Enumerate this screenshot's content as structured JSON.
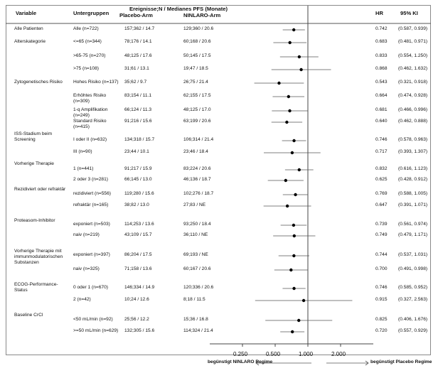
{
  "headers": {
    "variable": "Variable",
    "subgroup": "Untergruppen",
    "events_title": "Ereignisse;N / Medianes PFS (Monate)",
    "placebo": "Placebo-Arm",
    "ninlaro": "NINLARO-Arm",
    "hr": "HR",
    "ci": "95% KI"
  },
  "chart_data": {
    "type": "forest",
    "x_scale": "log",
    "xlim": [
      0.125,
      4.0
    ],
    "reference_line": 1.0,
    "x_ticks": [
      "0.250",
      "0.500",
      "1.000",
      "2.000"
    ],
    "x_tick_values": [
      0.25,
      0.5,
      1.0,
      2.0
    ],
    "left_label": "begünstigt NINLARO Regime",
    "right_label": "begünstigt Placebo Regime",
    "groups": [
      {
        "variable": "Alle Patienten",
        "rows": [
          {
            "subgroup": "Alle (n=722)",
            "placebo": "157;362 / 14.7",
            "ninlaro": "129;360 / 20.6",
            "hr": 0.742,
            "lo": 0.587,
            "hi": 0.939,
            "hr_text": "0.742",
            "ci_text": "(0.587, 0.939)"
          }
        ]
      },
      {
        "variable": "Alterskategorie",
        "rows": [
          {
            "subgroup": "<=65 (n=344)",
            "placebo": "78;176 / 14.1",
            "ninlaro": "60;168 / 20.6",
            "hr": 0.683,
            "lo": 0.481,
            "hi": 0.971,
            "hr_text": "0.683",
            "ci_text": "(0.481, 0.971)"
          },
          {
            "subgroup": ">65-75 (n=270)",
            "placebo": "48;125 / 17.6",
            "ninlaro": "50;145 / 17.5",
            "hr": 0.833,
            "lo": 0.554,
            "hi": 1.25,
            "hr_text": "0.833",
            "ci_text": "(0.554, 1.250)"
          },
          {
            "subgroup": ">75 (n=108)",
            "placebo": "31;61 / 13.1",
            "ninlaro": "19;47 / 18.5",
            "hr": 0.868,
            "lo": 0.462,
            "hi": 1.632,
            "hr_text": "0.868",
            "ci_text": "(0.462, 1.632)"
          }
        ]
      },
      {
        "variable": "Zytogenetisches Risiko",
        "rows": [
          {
            "subgroup": "Hohes Risiko (n=137)",
            "placebo": "35;62 / 9.7",
            "ninlaro": "26;75 / 21.4",
            "hr": 0.543,
            "lo": 0.321,
            "hi": 0.918,
            "hr_text": "0.543",
            "ci_text": "(0.321, 0.918)"
          },
          {
            "subgroup": "Erhöhtes Risiko (n=309)",
            "placebo": "83;154 / 11.1",
            "ninlaro": "62;155 / 17.5",
            "hr": 0.664,
            "lo": 0.474,
            "hi": 0.928,
            "hr_text": "0.664",
            "ci_text": "(0.474, 0.928)"
          },
          {
            "subgroup": "1-q Amplifikation (n=249)",
            "placebo": "66;124 / 11.3",
            "ninlaro": "48;125 / 17.0",
            "hr": 0.681,
            "lo": 0.466,
            "hi": 0.996,
            "hr_text": "0.681",
            "ci_text": "(0.466, 0.996)"
          },
          {
            "subgroup": "Standard Risiko (n=415)",
            "placebo": "91;216 / 15.6",
            "ninlaro": "63;199 / 20.6",
            "hr": 0.64,
            "lo": 0.462,
            "hi": 0.888,
            "hr_text": "0.640",
            "ci_text": "(0.462, 0.888)"
          }
        ]
      },
      {
        "variable": "ISS-Stadium beim Screening",
        "rows": [
          {
            "subgroup": "I oder II (n=632)",
            "placebo": "134;318 / 15.7",
            "ninlaro": "106;314 / 21.4",
            "hr": 0.746,
            "lo": 0.578,
            "hi": 0.963,
            "hr_text": "0.746",
            "ci_text": "(0.578, 0.963)"
          },
          {
            "subgroup": "III (n=90)",
            "placebo": "23;44 / 10.1",
            "ninlaro": "23;46 / 18.4",
            "hr": 0.717,
            "lo": 0.393,
            "hi": 1.307,
            "hr_text": "0.717",
            "ci_text": "(0.393, 1.307)"
          }
        ]
      },
      {
        "variable": "Vorherige Therapie",
        "rows": [
          {
            "subgroup": "1 (n=441)",
            "placebo": "91;217 / 15.9",
            "ninlaro": "83;224 / 20.6",
            "hr": 0.832,
            "lo": 0.616,
            "hi": 1.123,
            "hr_text": "0.832",
            "ci_text": "(0.616, 1.123)"
          },
          {
            "subgroup": "2 oder 3 (n=281)",
            "placebo": "66;145 / 13.0",
            "ninlaro": "46;136 / 18.7",
            "hr": 0.625,
            "lo": 0.428,
            "hi": 0.912,
            "hr_text": "0.625",
            "ci_text": "(0.428, 0.912)"
          }
        ]
      },
      {
        "variable": "Rezidiviert oder refraktär",
        "rows": [
          {
            "subgroup": "rezidiviert (n=556)",
            "placebo": "119;280 / 15.6",
            "ninlaro": "102;276 / 18.7",
            "hr": 0.769,
            "lo": 0.588,
            "hi": 1.005,
            "hr_text": "0.769",
            "ci_text": "(0.588, 1.005)"
          },
          {
            "subgroup": "refraktär (n=165)",
            "placebo": "38;82 / 13.0",
            "ninlaro": "27;83 / NE",
            "hr": 0.647,
            "lo": 0.391,
            "hi": 1.071,
            "hr_text": "0.647",
            "ci_text": "(0.391, 1.071)"
          }
        ]
      },
      {
        "variable": "Proteasom-Inhibitor",
        "rows": [
          {
            "subgroup": "exponiert (n=503)",
            "placebo": "114;253 / 13.6",
            "ninlaro": "93;250 / 18.4",
            "hr": 0.739,
            "lo": 0.561,
            "hi": 0.974,
            "hr_text": "0.739",
            "ci_text": "(0.561, 0.974)"
          },
          {
            "subgroup": "naiv (n=219)",
            "placebo": "43;109 / 15.7",
            "ninlaro": "36;110 / NE",
            "hr": 0.749,
            "lo": 0.479,
            "hi": 1.171,
            "hr_text": "0.749",
            "ci_text": "(0.479, 1.171)"
          }
        ]
      },
      {
        "variable": "Vorherige Therapie mit immunmodulatorischen Substanzen",
        "rows": [
          {
            "subgroup": "exponiert (n=397)",
            "placebo": "86;204 / 17.5",
            "ninlaro": "69;193 / NE",
            "hr": 0.744,
            "lo": 0.537,
            "hi": 1.031,
            "hr_text": "0.744",
            "ci_text": "(0.537, 1.031)"
          },
          {
            "subgroup": "naiv (n=325)",
            "placebo": "71;158 / 13.6",
            "ninlaro": "60;167 / 20.6",
            "hr": 0.7,
            "lo": 0.491,
            "hi": 0.998,
            "hr_text": "0.700",
            "ci_text": "(0.491, 0.998)"
          }
        ]
      },
      {
        "variable": "ECOG-Performance-Status",
        "rows": [
          {
            "subgroup": "0 oder 1 (n=670)",
            "placebo": "146;334 / 14.9",
            "ninlaro": "120;336 / 20.6",
            "hr": 0.746,
            "lo": 0.585,
            "hi": 0.952,
            "hr_text": "0.746",
            "ci_text": "(0.585, 0.952)"
          },
          {
            "subgroup": "2 (n=42)",
            "placebo": "10;24 / 12.6",
            "ninlaro": "8;18 / 11.5",
            "hr": 0.915,
            "lo": 0.327,
            "hi": 2.563,
            "hr_text": "0.915",
            "ci_text": "(0.327, 2.563)"
          }
        ]
      },
      {
        "variable": "Baseline CrCl",
        "rows": [
          {
            "subgroup": "<50 mL/min (n=92)",
            "placebo": "25;56 / 12.2",
            "ninlaro": "15;36 / 16.8",
            "hr": 0.825,
            "lo": 0.406,
            "hi": 1.676,
            "hr_text": "0.825",
            "ci_text": "(0.406, 1.676)"
          },
          {
            "subgroup": ">=50 mL/min (n=629)",
            "placebo": "132;305 / 15.6",
            "ninlaro": "114;324 / 21.4",
            "hr": 0.72,
            "lo": 0.557,
            "hi": 0.929,
            "hr_text": "0.720",
            "ci_text": "(0.557, 0.929)"
          }
        ]
      }
    ]
  }
}
